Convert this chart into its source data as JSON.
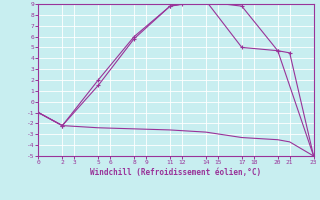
{
  "xlabel": "Windchill (Refroidissement éolien,°C)",
  "bg_color": "#c8eef0",
  "grid_color": "#ffffff",
  "line_color": "#993399",
  "xlim": [
    0,
    23
  ],
  "ylim": [
    -5,
    9
  ],
  "xticks": [
    0,
    2,
    3,
    5,
    6,
    8,
    9,
    11,
    12,
    14,
    15,
    17,
    18,
    20,
    21,
    23
  ],
  "yticks": [
    -5,
    -4,
    -3,
    -2,
    -1,
    0,
    1,
    2,
    3,
    4,
    5,
    6,
    7,
    8,
    9
  ],
  "line1_x": [
    0,
    2,
    5,
    8,
    11,
    12,
    14,
    17,
    20,
    23
  ],
  "line1_y": [
    -1,
    -2.2,
    2,
    6,
    8.8,
    9.0,
    9.2,
    8.8,
    4.7,
    -5
  ],
  "line2_x": [
    0,
    2,
    5,
    8,
    11,
    14,
    17,
    20,
    21,
    23
  ],
  "line2_y": [
    -1,
    -2.2,
    1.5,
    5.8,
    8.8,
    9.3,
    5.0,
    4.7,
    4.5,
    -5
  ],
  "line3_x": [
    0,
    2,
    5,
    8,
    11,
    14,
    17,
    20,
    21,
    23
  ],
  "line3_y": [
    -1,
    -2.2,
    -2.4,
    -2.5,
    -2.6,
    -2.8,
    -3.3,
    -3.5,
    -3.7,
    -5
  ],
  "marker1_x": [
    0,
    2,
    5,
    8,
    11,
    12,
    14,
    17,
    20,
    23
  ],
  "marker1_y": [
    -1,
    -2.2,
    2,
    6,
    8.8,
    9.0,
    9.2,
    8.8,
    4.7,
    -5
  ],
  "marker2_x": [
    0,
    2,
    5,
    8,
    11,
    14,
    17,
    20,
    21,
    23
  ],
  "marker2_y": [
    -1,
    -2.2,
    1.5,
    5.8,
    8.8,
    9.3,
    5.0,
    4.7,
    4.5,
    -5
  ]
}
